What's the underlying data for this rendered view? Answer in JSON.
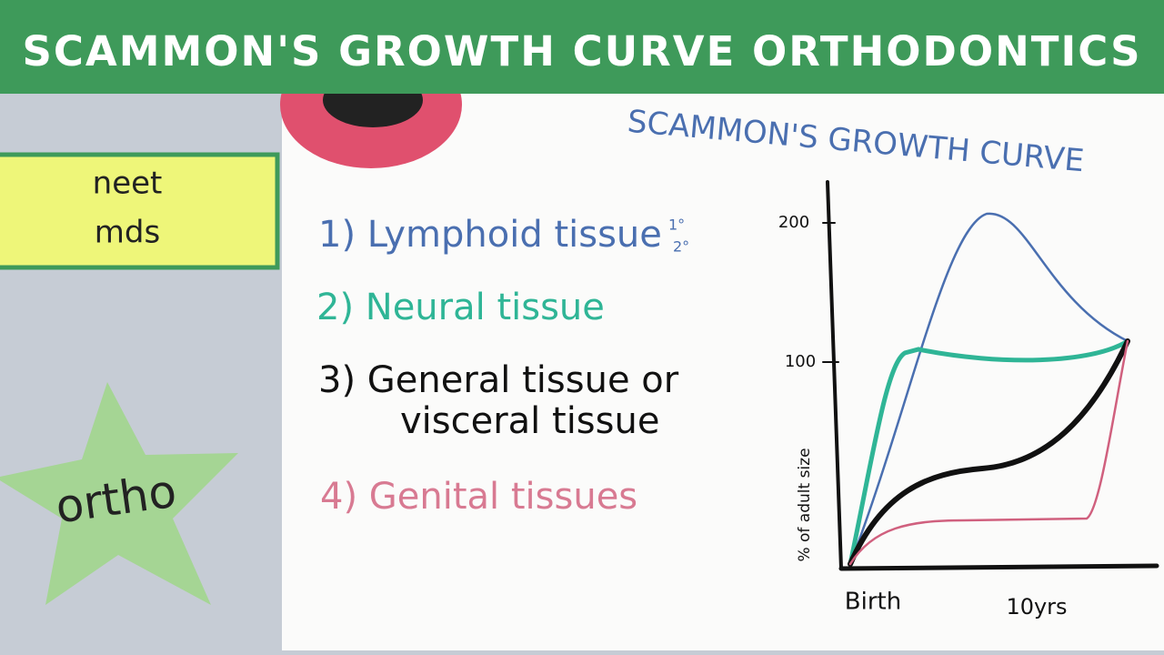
{
  "header": {
    "title": "SCAMMON'S GROWTH CURVE ORTHODONTICS"
  },
  "sidebar": {
    "tags": [
      "neet",
      "mds"
    ],
    "badge": "ortho"
  },
  "board": {
    "title": "SCAMMON'S GROWTH CURVE",
    "items": [
      "1) Lymphoid tissue",
      "2) Neural tissue",
      "3) General tissue or",
      "visceral tissue",
      "4) Genital tissues"
    ],
    "lymphoid_note": [
      "1°",
      "2°"
    ],
    "graph": {
      "y_label": "% of adult size",
      "y_ticks": [
        "200",
        "100"
      ],
      "x_ticks": [
        "Birth",
        "10yrs"
      ]
    }
  }
}
